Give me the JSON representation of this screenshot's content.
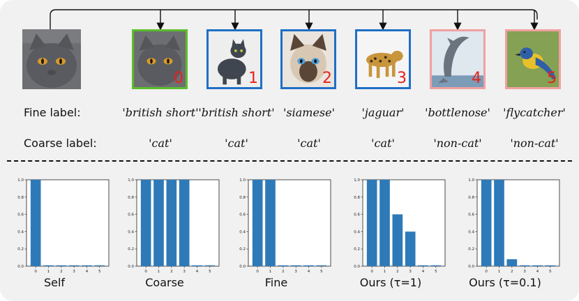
{
  "rows": {
    "fine_label": "Fine label:",
    "coarse_label": "Coarse label:"
  },
  "images": [
    {
      "index": "0",
      "subject": "british-shorthair-cat",
      "border_color": "#5cbd2c",
      "fine": "'british short'",
      "coarse": "'cat'"
    },
    {
      "index": "1",
      "subject": "british-shorthair-cat",
      "border_color": "#1f6fc5",
      "fine": "'british short'",
      "coarse": "'cat'"
    },
    {
      "index": "2",
      "subject": "siamese-cat",
      "border_color": "#1f6fc5",
      "fine": "'siamese'",
      "coarse": "'cat'"
    },
    {
      "index": "3",
      "subject": "jaguar",
      "border_color": "#1f6fc5",
      "fine": "'jaguar'",
      "coarse": "'cat'"
    },
    {
      "index": "4",
      "subject": "bottlenose-dolphin",
      "border_color": "#f0a0a0",
      "fine": "'bottlenose'",
      "coarse": "'non-cat'"
    },
    {
      "index": "5",
      "subject": "flycatcher-bird",
      "border_color": "#f0a0a0",
      "fine": "'flycatcher'",
      "coarse": "'non-cat'"
    }
  ],
  "chart_data": [
    {
      "type": "bar",
      "title": "Self",
      "categories": [
        "0",
        "1",
        "2",
        "3",
        "4",
        "5"
      ],
      "values": [
        1.0,
        0.01,
        0.01,
        0.01,
        0.01,
        0.01
      ],
      "ylim": [
        0,
        1.0
      ],
      "yticks": [
        "0.0",
        "0.2",
        "0.4",
        "0.6",
        "0.8",
        "1.0"
      ],
      "bar_color": "#2e7ab8",
      "grid": false
    },
    {
      "type": "bar",
      "title": "Coarse",
      "categories": [
        "0",
        "1",
        "2",
        "3",
        "4",
        "5"
      ],
      "values": [
        1.0,
        1.0,
        1.0,
        1.0,
        0.01,
        0.01
      ],
      "ylim": [
        0,
        1.0
      ],
      "yticks": [
        "0.0",
        "0.2",
        "0.4",
        "0.6",
        "0.8",
        "1.0"
      ],
      "bar_color": "#2e7ab8",
      "grid": false
    },
    {
      "type": "bar",
      "title": "Fine",
      "categories": [
        "0",
        "1",
        "2",
        "3",
        "4",
        "5"
      ],
      "values": [
        1.0,
        1.0,
        0.01,
        0.01,
        0.01,
        0.01
      ],
      "ylim": [
        0,
        1.0
      ],
      "yticks": [
        "0.0",
        "0.2",
        "0.4",
        "0.6",
        "0.8",
        "1.0"
      ],
      "bar_color": "#2e7ab8",
      "grid": false
    },
    {
      "type": "bar",
      "title": "Ours (τ=1)",
      "categories": [
        "0",
        "1",
        "2",
        "3",
        "4",
        "5"
      ],
      "values": [
        1.0,
        1.0,
        0.6,
        0.4,
        0.01,
        0.01
      ],
      "ylim": [
        0,
        1.0
      ],
      "yticks": [
        "0.0",
        "0.2",
        "0.4",
        "0.6",
        "0.8",
        "1.0"
      ],
      "bar_color": "#2e7ab8",
      "grid": false
    },
    {
      "type": "bar",
      "title": "Ours (τ=0.1)",
      "categories": [
        "0",
        "1",
        "2",
        "3",
        "4",
        "5"
      ],
      "values": [
        1.0,
        1.0,
        0.08,
        0.01,
        0.01,
        0.01
      ],
      "ylim": [
        0,
        1.0
      ],
      "yticks": [
        "0.0",
        "0.2",
        "0.4",
        "0.6",
        "0.8",
        "1.0"
      ],
      "bar_color": "#2e7ab8",
      "grid": false
    }
  ]
}
